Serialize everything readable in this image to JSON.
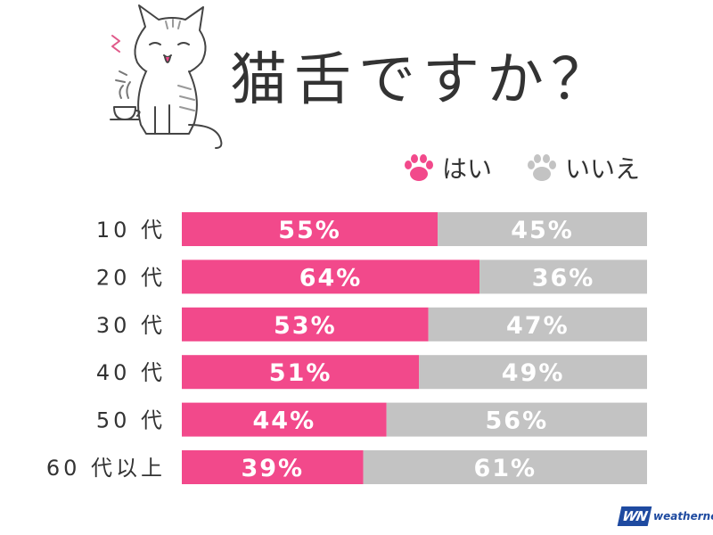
{
  "header": {
    "title": "猫舌ですか？"
  },
  "legend": [
    {
      "label": "はい",
      "color": "#f2498b",
      "icon": "paw-pink-icon"
    },
    {
      "label": "いいえ",
      "color": "#c3c3c3",
      "icon": "paw-gray-icon"
    }
  ],
  "logo": {
    "mark": "WN",
    "text": "weathernews"
  },
  "chart_data": {
    "type": "bar",
    "orientation": "horizontal",
    "stacked": true,
    "title": "猫舌ですか？",
    "categories": [
      "10代",
      "20代",
      "30代",
      "40代",
      "50代",
      "60代以上"
    ],
    "category_labels": [
      "10 代",
      "20 代",
      "30 代",
      "40 代",
      "50 代",
      "60 代以上"
    ],
    "series": [
      {
        "name": "はい",
        "values": [
          55,
          64,
          53,
          51,
          44,
          39
        ],
        "labels": [
          "55%",
          "64%",
          "53%",
          "51%",
          "44%",
          "39%"
        ],
        "color": "#f2498b"
      },
      {
        "name": "いいえ",
        "values": [
          45,
          36,
          47,
          49,
          56,
          61
        ],
        "labels": [
          "45%",
          "36%",
          "47%",
          "49%",
          "56%",
          "61%"
        ],
        "color": "#c3c3c3"
      }
    ],
    "xlim": [
      0,
      100
    ],
    "unit": "%",
    "grid": false,
    "legend_position": "top-right"
  }
}
